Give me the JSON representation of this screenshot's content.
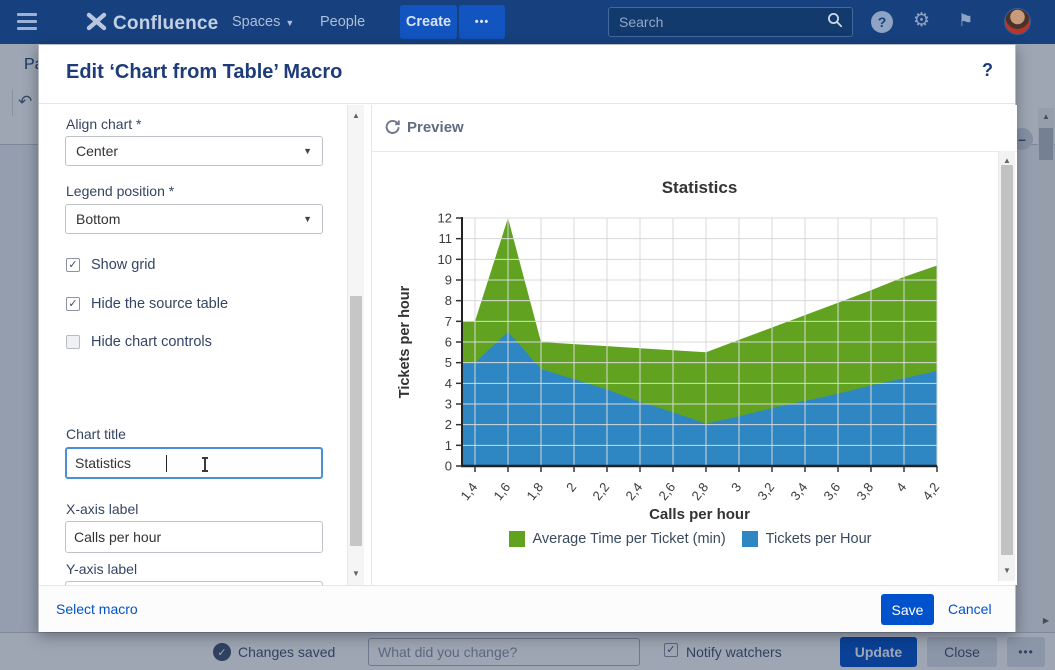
{
  "nav": {
    "brand": "Confluence",
    "spaces_label": "Spaces",
    "people_label": "People",
    "create_label": "Create",
    "more_label": "•••",
    "search_placeholder": "Search",
    "help_glyph": "?"
  },
  "page": {
    "title_fragment": "Pa",
    "collapse_glyph": "–",
    "footer": {
      "status": "Changes saved",
      "comment_placeholder": "What did you change?",
      "notify_label": "Notify watchers",
      "update_label": "Update",
      "close_label": "Close",
      "more_label": "•••"
    }
  },
  "modal": {
    "title": "Edit ‘Chart from Table’ Macro",
    "help_glyph": "?",
    "preview_label": "Preview",
    "form": {
      "align_chart": {
        "label": "Align chart *",
        "value": "Center"
      },
      "legend_position": {
        "label": "Legend position *",
        "value": "Bottom"
      },
      "checkboxes": [
        {
          "label": "Show grid",
          "checked": true
        },
        {
          "label": "Hide the source table",
          "checked": true
        },
        {
          "label": "Hide chart controls",
          "checked": false
        }
      ],
      "chart_title": {
        "label": "Chart title",
        "value": "Statistics"
      },
      "x_axis": {
        "label": "X-axis label",
        "value": "Calls per hour"
      },
      "y_axis": {
        "label": "Y-axis label",
        "value": "Tickets per hour"
      }
    },
    "footer": {
      "select_macro": "Select macro",
      "save": "Save",
      "cancel": "Cancel"
    }
  },
  "chart_data": {
    "type": "area",
    "stacked": true,
    "title": "Statistics",
    "xlabel": "Calls per hour",
    "ylabel": "Tickets per hour",
    "x": [
      1.4,
      1.6,
      1.8,
      2,
      2.2,
      2.4,
      2.6,
      2.8,
      3,
      3.2,
      3.4,
      3.6,
      3.8,
      4,
      4.2
    ],
    "x_tick_labels": [
      "1,4",
      "1,6",
      "1,8",
      "2",
      "2,2",
      "2,4",
      "2,6",
      "2,8",
      "3",
      "3,2",
      "3,4",
      "3,6",
      "3,8",
      "4",
      "4,2"
    ],
    "ylim": [
      0,
      12
    ],
    "grid": true,
    "legend_position": "bottom",
    "series": [
      {
        "name": "Average Time per Ticket (min)",
        "color": "#61a321",
        "values": [
          2,
          5.5,
          1.3,
          1.7,
          2.1,
          2.6,
          3.0,
          3.45,
          3.7,
          3.9,
          4.15,
          4.4,
          4.6,
          4.9,
          5.1
        ]
      },
      {
        "name": "Tickets per Hour",
        "color": "#2e86c2",
        "values": [
          5,
          6.5,
          4.7,
          4.2,
          3.7,
          3.1,
          2.6,
          2.05,
          2.4,
          2.8,
          3.15,
          3.5,
          3.9,
          4.25,
          4.6
        ]
      }
    ]
  },
  "colors": {
    "accent": "#0052cc",
    "nav_bg": "#17417e",
    "grid_line": "#d8d8d8",
    "axis_text": "#3c3c3c"
  },
  "icons": {
    "scroll_up": "▲",
    "scroll_down": "▼",
    "scroll_right": "▶",
    "check": "✓",
    "caret_down": "▼",
    "undo": "↶",
    "dots": "•••"
  }
}
